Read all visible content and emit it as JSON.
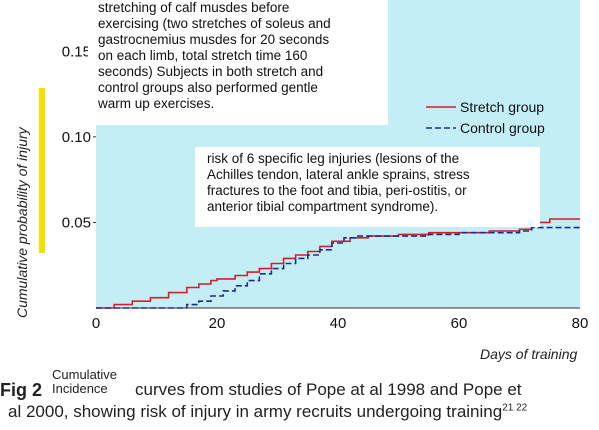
{
  "chart_data": {
    "type": "line",
    "xlabel": "Days of training",
    "ylabel": "Cumulative probability of injury",
    "xlim": [
      0,
      80
    ],
    "ylim": [
      0,
      0.18
    ],
    "x_ticks": [
      "0",
      "20",
      "40",
      "60",
      "80"
    ],
    "y_ticks": [
      "0.05",
      "0.10",
      "0.15"
    ],
    "grid": false,
    "legend_position": "right",
    "series": [
      {
        "name": "Stretch group",
        "color": "#d21f2a",
        "style": "solid",
        "points": [
          [
            0,
            0
          ],
          [
            3,
            0.002
          ],
          [
            6,
            0.004
          ],
          [
            9,
            0.006
          ],
          [
            12,
            0.009
          ],
          [
            15,
            0.012
          ],
          [
            17,
            0.014
          ],
          [
            19,
            0.016
          ],
          [
            20,
            0.017
          ],
          [
            23,
            0.019
          ],
          [
            25,
            0.021
          ],
          [
            27,
            0.023
          ],
          [
            29,
            0.026
          ],
          [
            31,
            0.029
          ],
          [
            33,
            0.031
          ],
          [
            35,
            0.033
          ],
          [
            37,
            0.036
          ],
          [
            39,
            0.039
          ],
          [
            42,
            0.041
          ],
          [
            45,
            0.042
          ],
          [
            50,
            0.043
          ],
          [
            55,
            0.044
          ],
          [
            60,
            0.044
          ],
          [
            65,
            0.045
          ],
          [
            70,
            0.046
          ],
          [
            72,
            0.05
          ],
          [
            75,
            0.052
          ],
          [
            80,
            0.052
          ]
        ]
      },
      {
        "name": "Control group",
        "color": "#1f2d8a",
        "style": "dashed",
        "points": [
          [
            0,
            0
          ],
          [
            14,
            0
          ],
          [
            15,
            0.002
          ],
          [
            17,
            0.004
          ],
          [
            19,
            0.007
          ],
          [
            21,
            0.01
          ],
          [
            23,
            0.013
          ],
          [
            25,
            0.016
          ],
          [
            27,
            0.02
          ],
          [
            29,
            0.023
          ],
          [
            31,
            0.026
          ],
          [
            33,
            0.029
          ],
          [
            35,
            0.031
          ],
          [
            37,
            0.034
          ],
          [
            39,
            0.038
          ],
          [
            41,
            0.041
          ],
          [
            43,
            0.042
          ],
          [
            48,
            0.042
          ],
          [
            55,
            0.043
          ],
          [
            60,
            0.044
          ],
          [
            65,
            0.044
          ],
          [
            70,
            0.045
          ],
          [
            72,
            0.047
          ],
          [
            80,
            0.047
          ]
        ]
      }
    ]
  },
  "annotations": {
    "note_1_lines": [
      "stretching of calf musdes before",
      "exercising (two stretches of soleus and",
      "gastrocnemius musdes for 20 seconds",
      "on each limb, total stretch time 160",
      "seconds) Subjects in both stretch and",
      "control groups also performed gentle",
      "warm up exercises."
    ],
    "note_2_lines": [
      "risk of 6 specific leg injuries (lesions of the",
      "Achilles tendon, lateral ankle sprains, stress",
      "fractures to the foot and tibia, peri-ostitis, or",
      "anterior tibial compartment syndrome)."
    ]
  },
  "caption": {
    "fig_label": "Fig 2",
    "cumulative_label": "Cumulative Incidence",
    "line1": "curves from studies of Pope at al 1998 and Pope et",
    "line2": "al 2000, showing risk of injury in army recruits undergoing training",
    "refs": "21 22"
  },
  "colors": {
    "plot_background": "#c4eef6",
    "ylabel_accent_bar": "#f2e100"
  }
}
